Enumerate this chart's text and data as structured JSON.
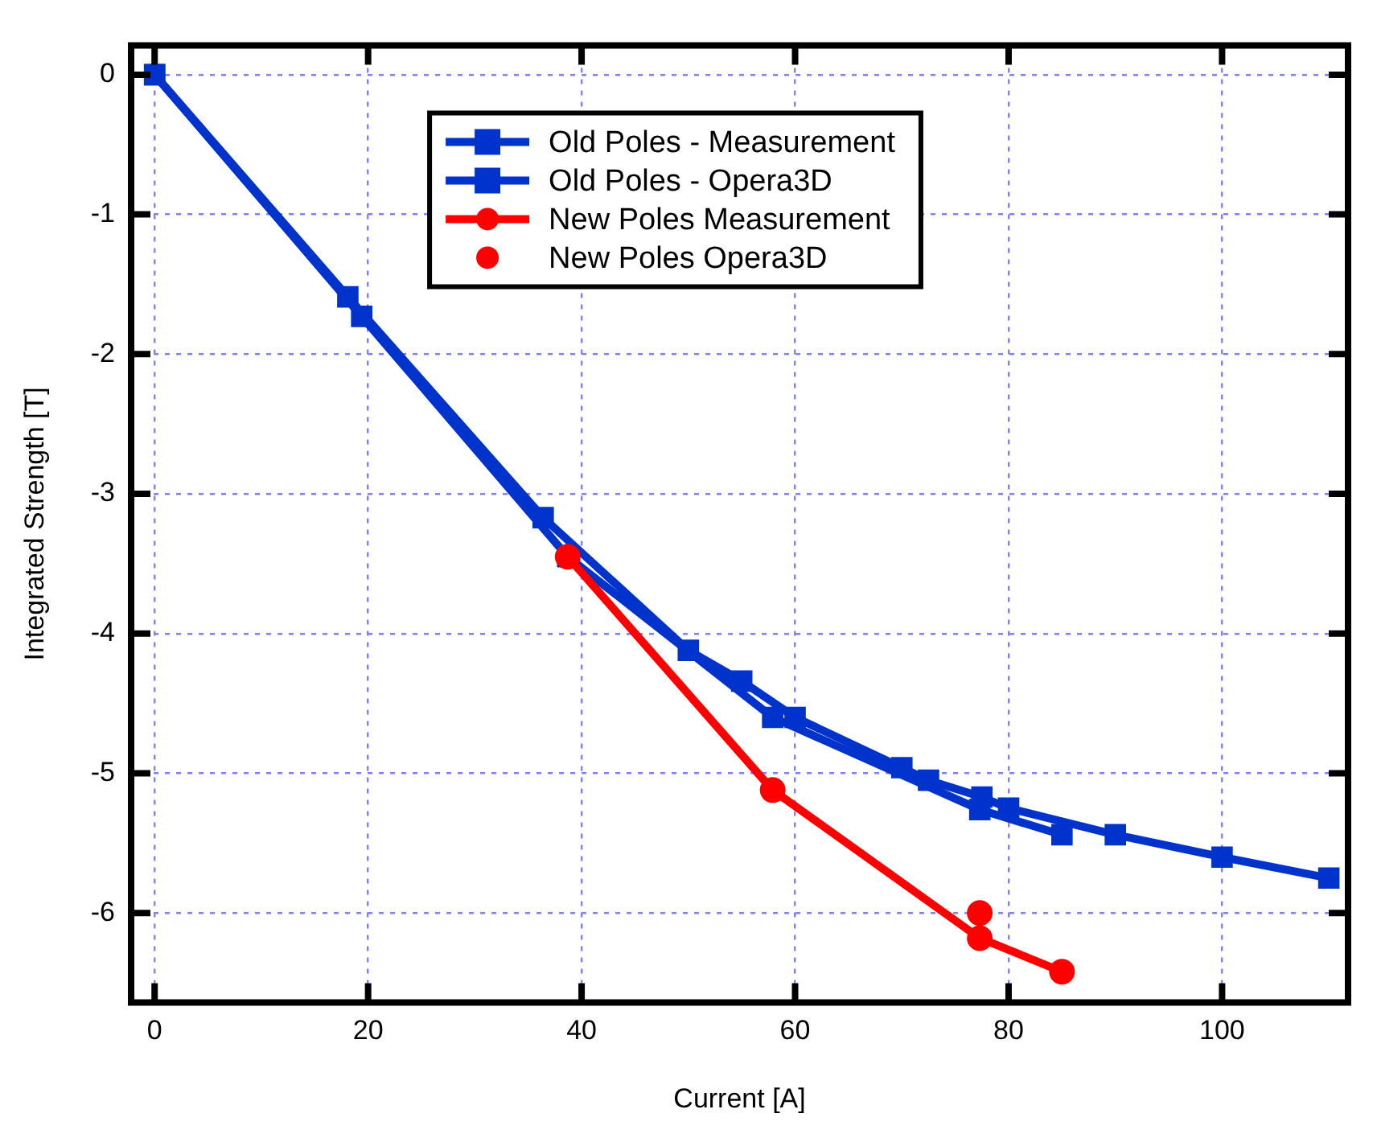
{
  "chart_data": {
    "type": "line",
    "xlabel": "Current [A]",
    "ylabel": "Integrated Strength [T]",
    "xlim": [
      -2.2,
      111.8
    ],
    "xticks": [
      0,
      20,
      40,
      60,
      80,
      100
    ],
    "ylim": [
      -6.64,
      0.21
    ],
    "yticks": [
      0,
      -1,
      -2,
      -3,
      -4,
      -5,
      -6
    ],
    "grid": true,
    "legend": "top",
    "series": [
      {
        "name": "Old Poles - Measurement",
        "color": "#0033cc",
        "marker": "square",
        "x": [
          0,
          19.4,
          38.7,
          57.9,
          77.3,
          85
        ],
        "values": [
          0,
          -1.73,
          -3.45,
          -4.6,
          -5.26,
          -5.44
        ]
      },
      {
        "name": "Old Poles - Opera3D",
        "color": "#0033cc",
        "marker": "square",
        "x": [
          0,
          18.1,
          36.4,
          50,
          55,
          60,
          70,
          72.5,
          77.5,
          80,
          90,
          100,
          110
        ],
        "values": [
          0,
          -1.59,
          -3.17,
          -4.12,
          -4.34,
          -4.6,
          -4.96,
          -5.05,
          -5.17,
          -5.25,
          -5.44,
          -5.6,
          -5.75
        ]
      },
      {
        "name": "New Poles Measurement",
        "color": "#ff0000",
        "marker": "circle",
        "x": [
          38.7,
          57.9,
          77.3,
          85
        ],
        "values": [
          -3.45,
          -5.12,
          -6.18,
          -6.42
        ]
      },
      {
        "name": "New Poles Opera3D",
        "type": "scatter",
        "color": "#ff0000",
        "marker": "circle",
        "x": [
          77.3
        ],
        "values": [
          -6.0
        ]
      }
    ]
  }
}
